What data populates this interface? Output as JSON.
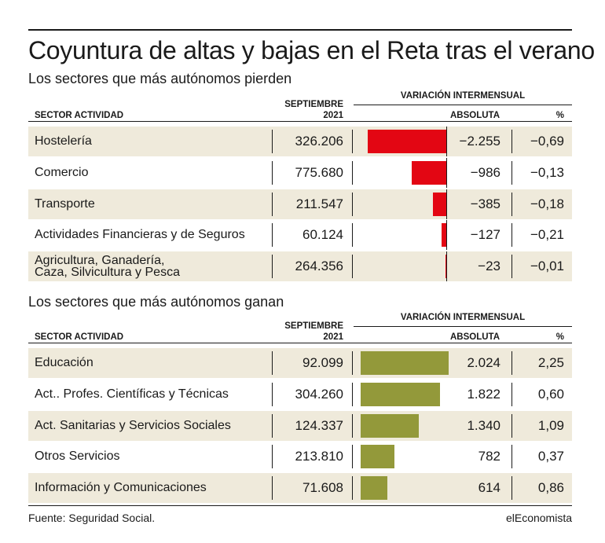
{
  "title": "Coyuntura de altas y bajas en el Reta tras el verano",
  "source": "Fuente: Seguridad Social.",
  "brand": "elEconomista",
  "colors": {
    "loss": "#e30613",
    "gain": "#93993a",
    "shade": "#efeadb"
  },
  "headers": {
    "sector": "SECTOR ACTIVIDAD",
    "month_line1": "SEPTIEMBRE",
    "month_line2": "2021",
    "variation": "VARIACIÓN INTERMENSUAL",
    "absolute": "ABSOLUTA",
    "percent": "%"
  },
  "chart_data": [
    {
      "type": "table",
      "title": "Los sectores que más autónomos pierden",
      "columns": [
        "SECTOR ACTIVIDAD",
        "SEPTIEMBRE 2021",
        "ABSOLUTA",
        "%"
      ],
      "bar_series": "ABSOLUTA",
      "rows": [
        {
          "sector": "Hostelería",
          "september": "326.206",
          "absolute_label": "−2.255",
          "percent_label": "−0,69",
          "absolute": -2255
        },
        {
          "sector": "Comercio",
          "september": "775.680",
          "absolute_label": "−986",
          "percent_label": "−0,13",
          "absolute": -986
        },
        {
          "sector": "Transporte",
          "september": "211.547",
          "absolute_label": "−385",
          "percent_label": "−0,18",
          "absolute": -385
        },
        {
          "sector": "Actividades Financieras y de Seguros",
          "september": "60.124",
          "absolute_label": "−127",
          "percent_label": "−0,21",
          "absolute": -127
        },
        {
          "sector": "Agricultura, Ganadería,\nCaza, Silvicultura y  Pesca",
          "september": "264.356",
          "absolute_label": "−23",
          "percent_label": "−0,01",
          "absolute": -23
        }
      ]
    },
    {
      "type": "table",
      "title": "Los sectores que más autónomos ganan",
      "columns": [
        "SECTOR ACTIVIDAD",
        "SEPTIEMBRE 2021",
        "ABSOLUTA",
        "%"
      ],
      "bar_series": "ABSOLUTA",
      "rows": [
        {
          "sector": "Educación",
          "september": "92.099",
          "absolute_label": "2.024",
          "percent_label": "2,25",
          "absolute": 2024
        },
        {
          "sector": "Act.. Profes. Científicas y Técnicas",
          "september": "304.260",
          "absolute_label": "1.822",
          "percent_label": "0,60",
          "absolute": 1822
        },
        {
          "sector": "Act. Sanitarias y Servicios Sociales",
          "september": "124.337",
          "absolute_label": "1.340",
          "percent_label": "1,09",
          "absolute": 1340
        },
        {
          "sector": "Otros Servicios",
          "september": "213.810",
          "absolute_label": "782",
          "percent_label": "0,37",
          "absolute": 782
        },
        {
          "sector": "Información y Comunicaciones",
          "september": "71.608",
          "absolute_label": "614",
          "percent_label": "0,86",
          "absolute": 614
        }
      ]
    }
  ]
}
